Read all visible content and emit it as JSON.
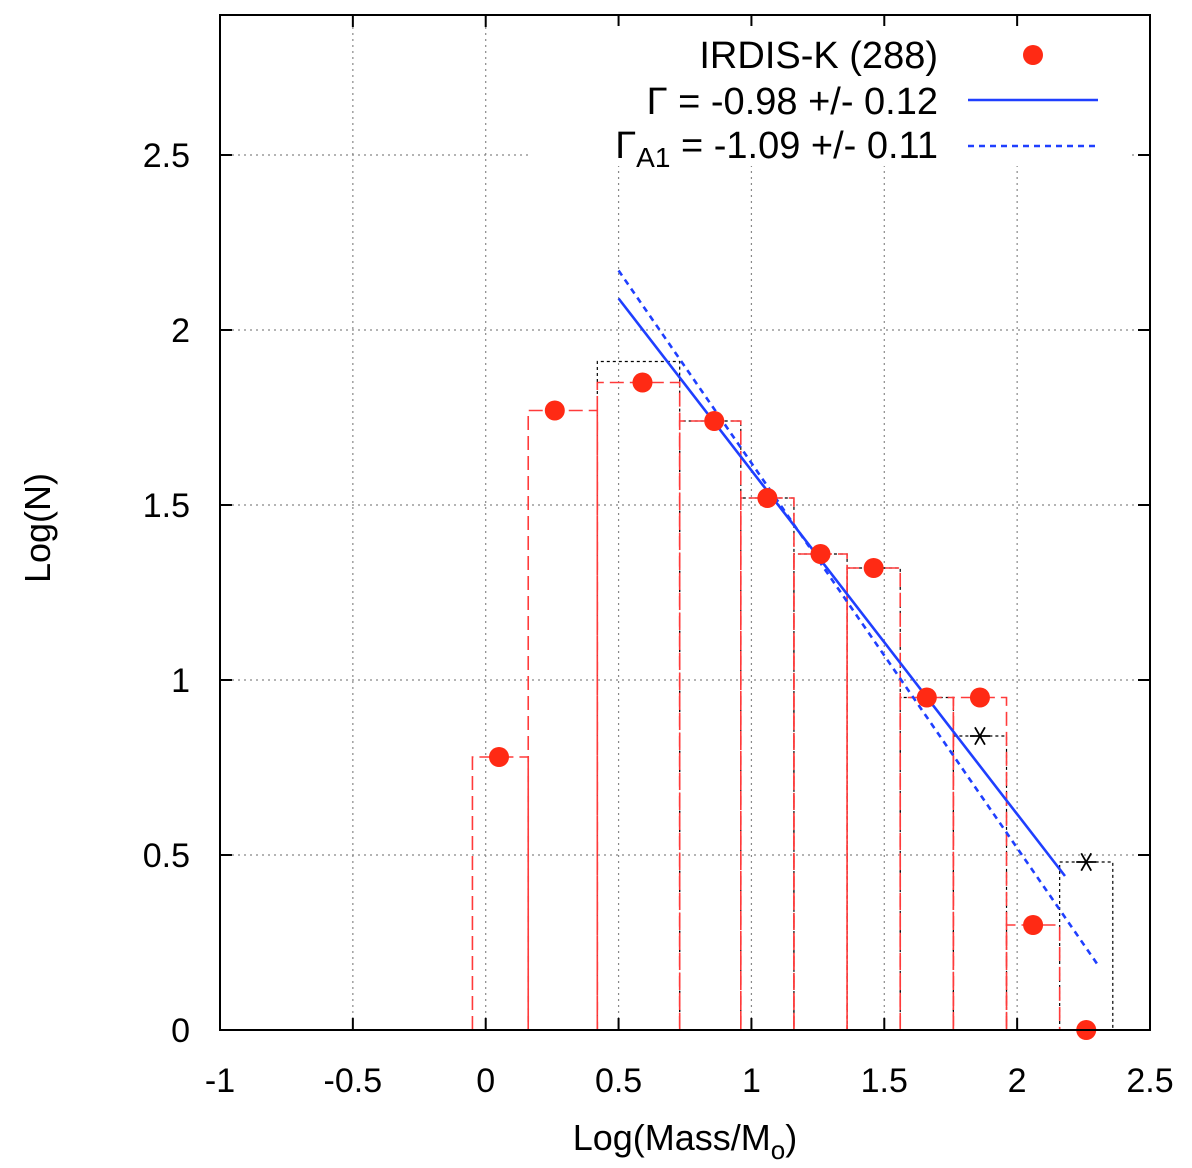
{
  "chart_data": {
    "type": "scatter",
    "xlabel": "Log(Mass/M",
    "xlabel_sub": "o",
    "xlabel_end": ")",
    "ylabel": "Log(N)",
    "xlim": [
      -1,
      2.5
    ],
    "ylim": [
      0,
      2.9
    ],
    "x_ticks": [
      -1,
      -0.5,
      0,
      0.5,
      1,
      1.5,
      2,
      2.5
    ],
    "x_tick_labels": [
      "-1",
      "-0.5",
      "0",
      "0.5",
      "1",
      "1.5",
      "2",
      "2.5"
    ],
    "y_ticks": [
      0,
      0.5,
      1,
      1.5,
      2,
      2.5
    ],
    "y_tick_labels": [
      "0",
      "0.5",
      "1",
      "1.5",
      "2",
      "2.5"
    ],
    "grid": true,
    "legend_position": "top-right",
    "legend": {
      "points": "IRDIS-K (288)",
      "fit_prefix": "Γ",
      "fit_text": " = -0.98 +/- 0.12",
      "fit_a1_prefix": "Γ",
      "fit_a1_sub": "A1",
      "fit_a1_text": " = -1.09 +/- 0.11"
    },
    "colors": {
      "points": "#ff2a14",
      "histogram_red": "#ff3b3b",
      "histogram_black": "#000000",
      "fit": "#1f3fff"
    },
    "series": [
      {
        "name": "IRDIS-K (288)",
        "kind": "points",
        "x": [
          0.05,
          0.26,
          0.59,
          0.86,
          1.06,
          1.26,
          1.46,
          1.66,
          1.86,
          2.06,
          2.26
        ],
        "y": [
          0.78,
          1.77,
          1.85,
          1.74,
          1.52,
          1.36,
          1.32,
          0.95,
          0.95,
          0.3,
          0.0
        ]
      },
      {
        "kind": "red-dashed-histogram",
        "bins": [
          {
            "x0": -0.05,
            "x1": 0.16,
            "y": 0.78
          },
          {
            "x0": 0.16,
            "x1": 0.42,
            "y": 1.77
          },
          {
            "x0": 0.42,
            "x1": 0.73,
            "y": 1.85
          },
          {
            "x0": 0.73,
            "x1": 0.96,
            "y": 1.74
          },
          {
            "x0": 0.96,
            "x1": 1.16,
            "y": 1.52
          },
          {
            "x0": 1.16,
            "x1": 1.36,
            "y": 1.36
          },
          {
            "x0": 1.36,
            "x1": 1.56,
            "y": 1.32
          },
          {
            "x0": 1.56,
            "x1": 1.76,
            "y": 0.95
          },
          {
            "x0": 1.76,
            "x1": 1.96,
            "y": 0.95
          },
          {
            "x0": 1.96,
            "x1": 2.16,
            "y": 0.3
          }
        ]
      },
      {
        "kind": "black-dotted-histogram",
        "bins": [
          {
            "x0": 0.42,
            "x1": 0.73,
            "y": 1.91
          },
          {
            "x0": 0.73,
            "x1": 0.96,
            "y": 1.74
          },
          {
            "x0": 0.96,
            "x1": 1.16,
            "y": 1.52
          },
          {
            "x0": 1.16,
            "x1": 1.36,
            "y": 1.36
          },
          {
            "x0": 1.36,
            "x1": 1.56,
            "y": 1.32
          },
          {
            "x0": 1.56,
            "x1": 1.76,
            "y": 0.95
          },
          {
            "x0": 1.76,
            "x1": 1.96,
            "y": 0.84
          },
          {
            "x0": 2.16,
            "x1": 2.36,
            "y": 0.48
          }
        ]
      },
      {
        "kind": "asterisks",
        "x": [
          1.86,
          2.26
        ],
        "y": [
          0.84,
          0.48
        ]
      },
      {
        "name": "Γ = -0.98 +/- 0.12",
        "kind": "solid-line",
        "x": [
          0.5,
          2.18
        ],
        "y": [
          2.09,
          0.44
        ]
      },
      {
        "name": "ΓA1 = -1.09 +/- 0.11",
        "kind": "dashed-line",
        "x": [
          0.5,
          2.3
        ],
        "y": [
          2.17,
          0.19
        ]
      }
    ]
  }
}
